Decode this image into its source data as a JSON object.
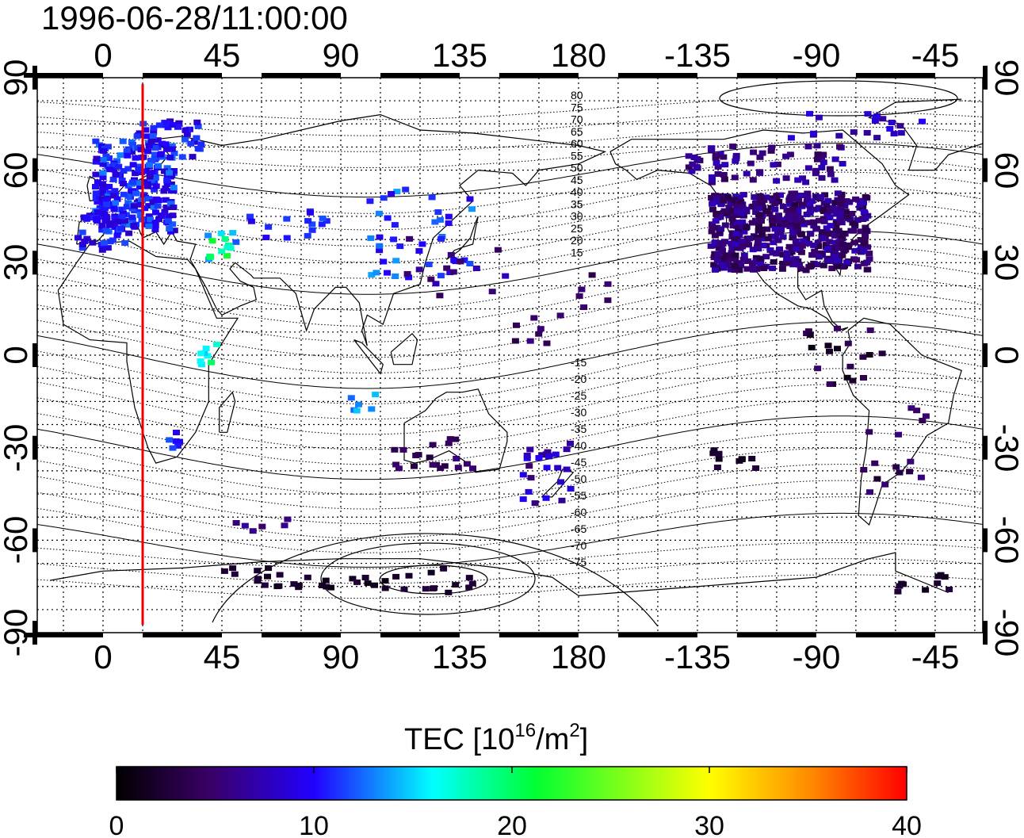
{
  "timestamp": "1996-06-28/11:00:00",
  "lon_ticks": [
    "0",
    "45",
    "90",
    "135",
    "180",
    "-135",
    "-90",
    "-45"
  ],
  "lat_ticks": [
    "90",
    "60",
    "30",
    "0",
    "-30",
    "-60",
    "-90"
  ],
  "contour_labels": [
    "80",
    "75",
    "70",
    "65",
    "60",
    "55",
    "50",
    "45",
    "40",
    "35",
    "30",
    "25",
    "20",
    "15",
    "-15",
    "-20",
    "-25",
    "-30",
    "-35",
    "-40",
    "-45",
    "-50",
    "-55",
    "-60",
    "-65",
    "-70",
    "-75"
  ],
  "colorbar": {
    "title_main": "TEC  [10",
    "title_exp1": "16",
    "title_mid": "/m",
    "title_exp2": "2",
    "title_end": "]",
    "ticks": [
      "0",
      "10",
      "20",
      "30",
      "40"
    ],
    "stops": [
      "#000000",
      "#3a0068",
      "#3300ff",
      "#00ffff",
      "#00ff00",
      "#ffff00",
      "#ff0000"
    ]
  },
  "sun_line_color": "#ee0000",
  "contour_color": "#000000"
}
